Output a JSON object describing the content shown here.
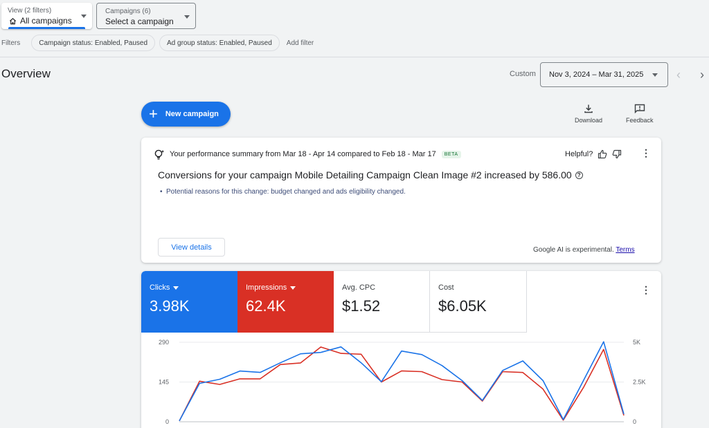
{
  "view_picker": {
    "label": "View (2 filters)",
    "value": "All campaigns"
  },
  "campaign_picker": {
    "label": "Campaigns (6)",
    "value": "Select a campaign"
  },
  "filters": {
    "label": "Filters",
    "chips": [
      "Campaign status: Enabled, Paused",
      "Ad group status: Enabled, Paused"
    ],
    "add_label": "Add filter"
  },
  "page_title": "Overview",
  "date_range": {
    "mode_label": "Custom",
    "value": "Nov 3, 2024 – Mar 31, 2025"
  },
  "new_campaign_label": "New campaign",
  "tools": {
    "download": "Download",
    "feedback": "Feedback"
  },
  "summary": {
    "heading": "Your performance summary from Mar 18 - Apr 14 compared to Feb 18 - Mar 17",
    "badge": "BETA",
    "helpful_label": "Helpful?",
    "main_text": "Conversions for your campaign Mobile Detailing Campaign Clean Image #2 increased by 586.00",
    "reason": "Potential reasons for this change: budget changed and ads eligibility changed.",
    "view_details": "View details",
    "ai_note": "Google AI is experimental.",
    "terms": "Terms"
  },
  "metrics": {
    "clicks": {
      "label": "Clicks",
      "value": "3.98K"
    },
    "impressions": {
      "label": "Impressions",
      "value": "62.4K"
    },
    "avg_cpc": {
      "label": "Avg. CPC",
      "value": "$1.52"
    },
    "cost": {
      "label": "Cost",
      "value": "$6.05K"
    }
  },
  "colors": {
    "clicks": "#1a73e8",
    "impressions": "#d93025"
  },
  "chart_data": {
    "type": "line",
    "y_left_ticks": [
      "290",
      "145",
      "0"
    ],
    "y_right_ticks": [
      "5K",
      "2.5K",
      "0"
    ],
    "ylim_left": [
      0,
      290
    ],
    "ylim_right": [
      0,
      5000
    ],
    "series": [
      {
        "name": "Clicks",
        "axis": "left",
        "values": [
          3,
          140,
          155,
          185,
          180,
          215,
          248,
          253,
          273,
          215,
          146,
          258,
          245,
          205,
          150,
          78,
          187,
          222,
          150,
          8,
          150,
          292,
          28
        ]
      },
      {
        "name": "Impressions",
        "axis": "right",
        "values": [
          50,
          2550,
          2350,
          2700,
          2700,
          3600,
          3700,
          4700,
          4300,
          4250,
          2500,
          3200,
          3150,
          2650,
          2500,
          1300,
          3150,
          3100,
          2050,
          100,
          2150,
          4550,
          400
        ]
      }
    ]
  }
}
